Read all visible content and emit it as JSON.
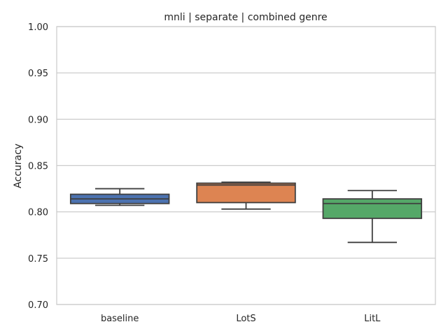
{
  "chart_data": {
    "type": "box",
    "title": "mnli | separate | combined genre",
    "xlabel": "",
    "ylabel": "Accuracy",
    "ylim": [
      0.7,
      1.0
    ],
    "yticks": [
      "0.70",
      "0.75",
      "0.80",
      "0.85",
      "0.90",
      "0.95",
      "1.00"
    ],
    "grid": true,
    "categories": [
      "baseline",
      "LotS",
      "LitL"
    ],
    "boxes": [
      {
        "category": "baseline",
        "color": "#4c72b0",
        "whislo": 0.807,
        "q1": 0.809,
        "med": 0.814,
        "q3": 0.819,
        "whishi": 0.825
      },
      {
        "category": "LotS",
        "color": "#dd8452",
        "whislo": 0.803,
        "q1": 0.81,
        "med": 0.829,
        "q3": 0.831,
        "whishi": 0.832
      },
      {
        "category": "LitL",
        "color": "#55a868",
        "whislo": 0.767,
        "q1": 0.793,
        "med": 0.809,
        "q3": 0.814,
        "whishi": 0.823
      }
    ]
  }
}
